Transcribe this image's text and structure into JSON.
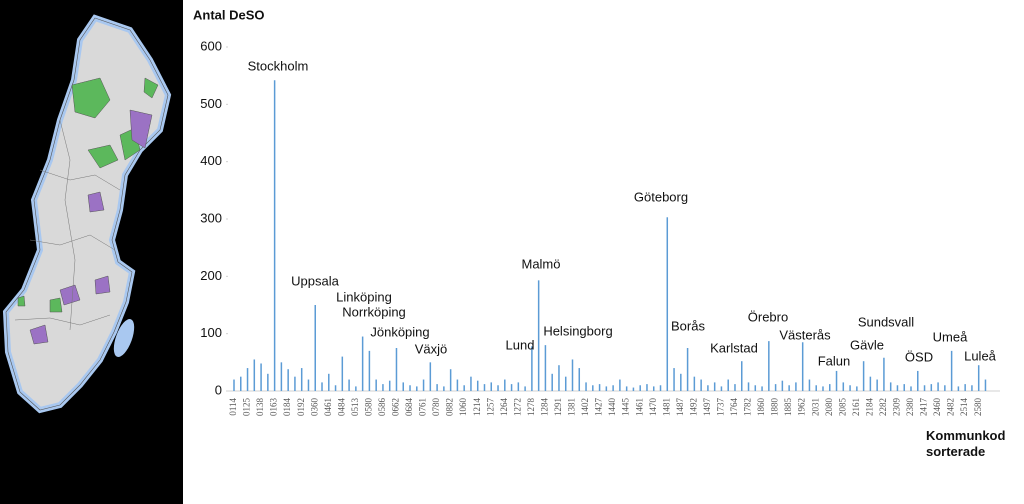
{
  "chart_data": {
    "type": "bar",
    "y_label": "Antal DeSO",
    "x_label": "Kommunkod sorterade",
    "categories": [
      "0114",
      null,
      "0125",
      null,
      "0138",
      null,
      "0163",
      null,
      "0184",
      null,
      "0192",
      null,
      "0360",
      null,
      "0461",
      null,
      "0484",
      null,
      "0513",
      null,
      "0580",
      null,
      "0586",
      null,
      "0662",
      null,
      "0684",
      null,
      "0761",
      null,
      "0780",
      null,
      "0882",
      null,
      "1060",
      null,
      "1214",
      null,
      "1257",
      null,
      "1264",
      null,
      "1272",
      null,
      "1278",
      null,
      "1284",
      null,
      "1291",
      null,
      "1381",
      null,
      "1402",
      null,
      "1427",
      null,
      "1440",
      null,
      "1445",
      null,
      "1461",
      null,
      "1470",
      null,
      "1481",
      null,
      "1487",
      null,
      "1492",
      null,
      "1497",
      null,
      "1737",
      null,
      "1764",
      null,
      "1782",
      null,
      "1860",
      null,
      "1880",
      null,
      "1885",
      null,
      "1962",
      null,
      "2031",
      null,
      "2080",
      null,
      "2085",
      null,
      "2161",
      null,
      "2184",
      null,
      "2282",
      null,
      "2309",
      null,
      "2380",
      null,
      "2417",
      null,
      "2460",
      null,
      "2482",
      null,
      "2514",
      null,
      "2580",
      null
    ],
    "values": [
      20,
      25,
      40,
      55,
      48,
      30,
      542,
      50,
      38,
      25,
      40,
      20,
      150,
      15,
      30,
      10,
      60,
      20,
      8,
      95,
      70,
      20,
      12,
      18,
      75,
      15,
      10,
      8,
      20,
      50,
      12,
      8,
      38,
      20,
      10,
      25,
      18,
      12,
      15,
      10,
      20,
      12,
      15,
      8,
      78,
      193,
      80,
      30,
      45,
      25,
      55,
      40,
      15,
      10,
      12,
      8,
      10,
      20,
      8,
      6,
      10,
      12,
      8,
      10,
      303,
      40,
      30,
      75,
      25,
      20,
      10,
      15,
      8,
      20,
      12,
      52,
      15,
      10,
      8,
      87,
      12,
      18,
      10,
      15,
      85,
      20,
      10,
      8,
      12,
      35,
      15,
      10,
      8,
      52,
      25,
      20,
      58,
      15,
      10,
      12,
      8,
      35,
      10,
      12,
      15,
      10,
      70,
      8,
      12,
      10,
      45,
      20
    ],
    "color": "#5b9bd5",
    "ylim": [
      0,
      600
    ],
    "yticks": [
      0,
      100,
      200,
      300,
      400,
      500,
      600
    ],
    "annotations": [
      "Stockholm",
      "Uppsala",
      "Linköping",
      "Norrköping",
      "Jönköping",
      "Växjö",
      "Lund",
      "Malmö",
      "Helsingborg",
      "Göteborg",
      "Borås",
      "Karlstad",
      "Örebro",
      "Västerås",
      "Falun",
      "Gävle",
      "Sundsvall",
      "ÖSD",
      "Umeå",
      "Luleå"
    ]
  }
}
